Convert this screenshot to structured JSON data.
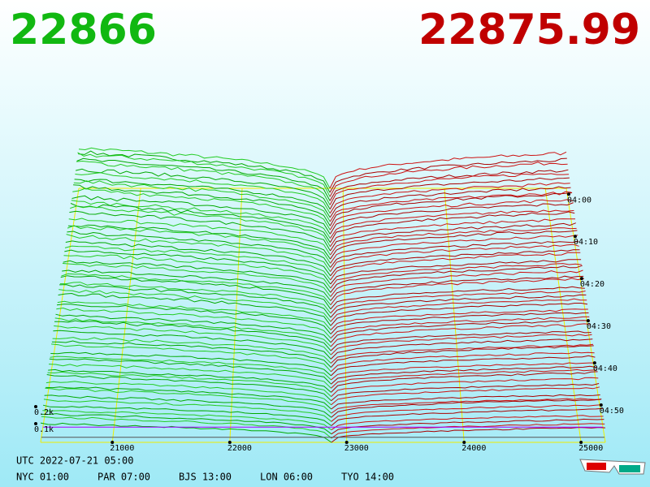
{
  "header": {
    "bid": "22866",
    "ask": "22875.99"
  },
  "axes": {
    "price_ticks": [
      "21000",
      "22000",
      "23000",
      "24000",
      "25000"
    ],
    "time_ticks": [
      "04:00",
      "04:10",
      "04:20",
      "04:30",
      "04:40",
      "04:50"
    ],
    "depth_ticks": [
      "0.2k",
      "0.1k"
    ]
  },
  "footer": {
    "utc": "UTC 2022-07-21 05:00",
    "cities": [
      "NYC 01:00",
      "PAR 07:00",
      "BJS 13:00",
      "LON 06:00",
      "TYO 14:00"
    ]
  }
}
